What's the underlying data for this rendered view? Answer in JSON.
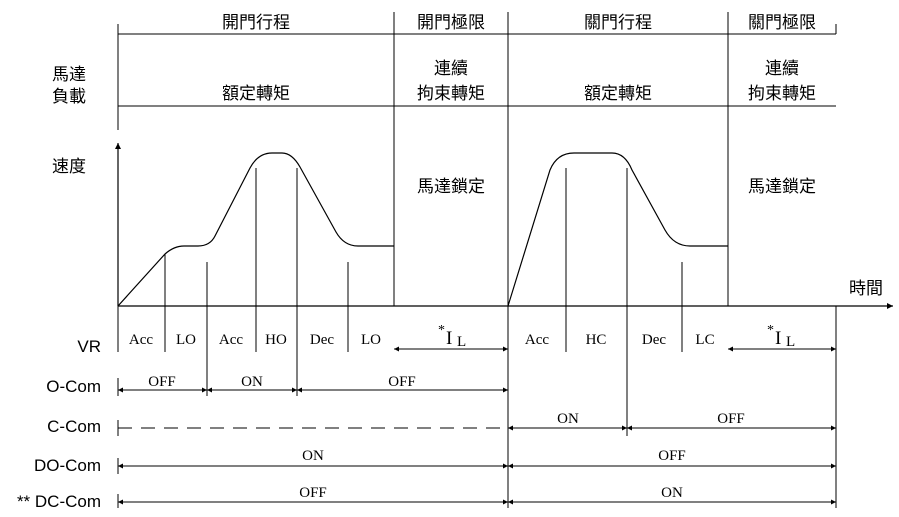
{
  "phases": {
    "open_travel": "開門行程",
    "open_limit": "開門極限",
    "close_travel": "關門行程",
    "close_limit": "關門極限"
  },
  "load": {
    "label_line1": "馬達",
    "label_line2": "負載",
    "rated_torque_open": "額定轉矩",
    "rated_torque_close": "額定轉矩",
    "holding_open_line1": "連續",
    "holding_open_line2": "拘束轉矩",
    "holding_close_line1": "連續",
    "holding_close_line2": "拘束轉矩"
  },
  "axes": {
    "speed": "速度",
    "time": "時間"
  },
  "motor_lock": {
    "open": "馬達鎖定",
    "close": "馬達鎖定"
  },
  "signals": {
    "vr": {
      "label": "VR",
      "open_segments": [
        "Acc",
        "LO",
        "Acc",
        "HO",
        "Dec",
        "LO"
      ],
      "open_limit_star": "*",
      "open_limit_value": "I",
      "open_limit_sub": "L",
      "close_segments": [
        "Acc",
        "HC",
        "Dec",
        "LC"
      ],
      "close_limit_star": "*",
      "close_limit_value": "I",
      "close_limit_sub": "L"
    },
    "o_com": {
      "label": "O-Com",
      "states": [
        "OFF",
        "ON",
        "OFF"
      ]
    },
    "c_com": {
      "label": "C-Com",
      "states": [
        "ON",
        "OFF"
      ]
    },
    "do_com": {
      "label": "DO-Com",
      "states": [
        "ON",
        "OFF"
      ]
    },
    "dc_com": {
      "label": "** DC-Com",
      "states": [
        "OFF",
        "ON"
      ]
    }
  }
}
